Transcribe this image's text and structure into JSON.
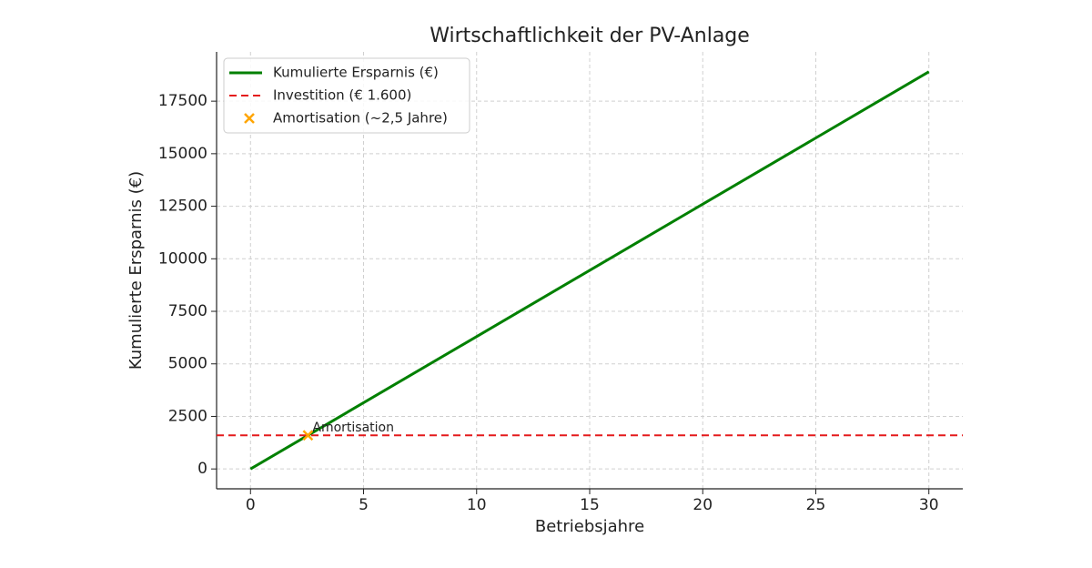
{
  "chart_data": {
    "type": "line",
    "title": "Wirtschaftlichkeit der PV-Anlage",
    "xlabel": "Betriebsjahre",
    "ylabel": "Kumulierte Ersparnis (€)",
    "xlim": [
      -1.5,
      31.5
    ],
    "ylim": [
      -945,
      19845
    ],
    "xticks": [
      0,
      5,
      10,
      15,
      20,
      25,
      30
    ],
    "yticks": [
      0,
      2500,
      5000,
      7500,
      10000,
      12500,
      15000,
      17500
    ],
    "grid": true,
    "legend": "upper left",
    "series": [
      {
        "name": "Kumulierte Ersparnis (€)",
        "type": "line",
        "color": "#008000",
        "x": [
          0,
          30
        ],
        "values": [
          0,
          18900
        ]
      },
      {
        "name": "Investition (€ 1.600)",
        "type": "hline",
        "color": "#e41a1c",
        "values": [
          1600
        ]
      },
      {
        "name": "Amortisation (~2,5 Jahre)",
        "type": "scatter",
        "color": "#ffa500",
        "x": [
          2.54
        ],
        "values": [
          1600
        ]
      }
    ],
    "annotation": "Amortisation"
  }
}
